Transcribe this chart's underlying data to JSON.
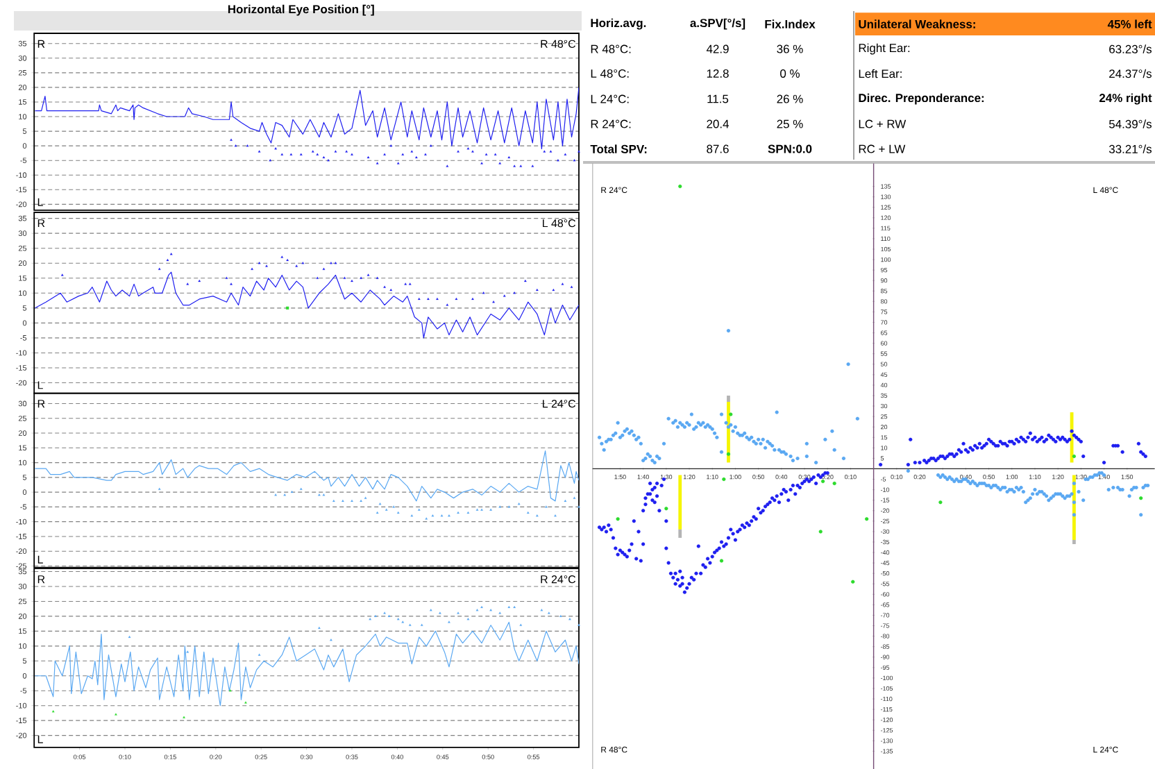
{
  "chart_data": [
    {
      "type": "line",
      "title": "Horizontal Eye Position [°]",
      "annotations": [
        "R",
        "L",
        "R 48°C"
      ],
      "xlim": [
        0,
        60
      ],
      "ylim": [
        -22,
        38.5
      ],
      "yticks": [
        -20,
        -15,
        -10,
        -5,
        0,
        5,
        10,
        15,
        20,
        25,
        30,
        35
      ],
      "grid": "y",
      "tick_labels": "y",
      "series": [
        {
          "color": "#1f1ff0",
          "x": [
            0.1,
            0.8,
            1.2,
            1.4,
            3.4,
            5.4,
            7.1,
            7.2,
            7.4,
            8.5,
            9.0,
            9.2,
            9.5,
            10.5,
            10.9,
            11.0,
            11.1,
            11.5,
            12.0,
            13.6,
            14.6,
            15.6,
            16.6,
            17.0,
            17.4,
            18.7,
            19.7,
            20.7,
            21.5,
            21.7,
            21.9,
            22.8,
            23.8,
            24.8,
            25.1,
            25.6,
            26.1,
            26.6,
            27.3,
            28.1,
            28.5,
            29.6,
            30.4,
            31.4,
            31.9,
            32.7,
            33.5,
            34.2,
            35.0,
            35.9,
            36.5,
            37.3,
            37.8,
            38.6,
            39.3,
            40.4,
            41.1,
            41.6,
            42.4,
            42.9,
            43.7,
            44.4,
            44.9,
            45.5,
            46.0,
            46.7,
            47.2,
            48.0,
            48.8,
            49.5,
            50.3,
            51.1,
            51.8,
            52.6,
            53.4,
            54.1,
            54.9,
            55.4,
            55.9,
            56.4,
            57.2,
            57.7,
            58.2,
            58.7,
            59.2,
            59.7,
            60.0
          ],
          "values": [
            12,
            12,
            17,
            12,
            12,
            12,
            12,
            14,
            12,
            11,
            14,
            12,
            13,
            12,
            14,
            9,
            13,
            14,
            13,
            11,
            10,
            10,
            10,
            13,
            11,
            10,
            9,
            9,
            9,
            15,
            10,
            8,
            6,
            5,
            8,
            4,
            1,
            8,
            7,
            3,
            9,
            4,
            9,
            3,
            8,
            3,
            11,
            4,
            6,
            19,
            7,
            12,
            3,
            13,
            2,
            15,
            3,
            12,
            2,
            13,
            3,
            12,
            2,
            15,
            0,
            13,
            3,
            12,
            1,
            13,
            2,
            12,
            1,
            13,
            0,
            12,
            1,
            15,
            -1,
            16,
            2,
            15,
            0,
            16,
            3,
            11,
            20
          ]
        },
        {
          "type": "scatter",
          "marker": "triangle",
          "color": "#1f1ff0",
          "x": [
            21.7,
            22.2,
            23.5,
            24.8,
            26.0,
            26.6,
            27.3,
            28.3,
            29.4,
            30.7,
            31.2,
            31.9,
            32.4,
            33.2,
            34.4,
            35.0,
            36.8,
            37.8,
            38.6,
            39.3,
            40.1,
            40.6,
            41.6,
            42.1,
            43.1,
            43.7,
            45.5,
            46.7,
            47.8,
            48.3,
            49.3,
            49.8,
            50.8,
            51.3,
            52.3,
            52.9,
            53.6,
            54.9,
            56.2,
            56.9,
            57.7,
            58.5,
            59.5,
            60.0
          ],
          "values": [
            2,
            0,
            0,
            -2,
            -5,
            -1,
            -3,
            -3,
            -3,
            -2,
            -3,
            -4,
            -5,
            -2,
            -2,
            -3,
            -4,
            -6,
            -3,
            0,
            -6,
            -3,
            -2,
            -4,
            -3,
            0,
            -7,
            -2,
            -1,
            -2,
            -6,
            -3,
            -3,
            -6,
            -4,
            -7,
            -7,
            -7,
            -2,
            -2,
            -5,
            -3,
            -5,
            -2
          ]
        }
      ]
    },
    {
      "type": "line",
      "annotations": [
        "R",
        "L",
        "L 48°C"
      ],
      "xlim": [
        0,
        60
      ],
      "ylim": [
        -23.5,
        37
      ],
      "yticks": [
        -20,
        -15,
        -10,
        -5,
        0,
        5,
        10,
        15,
        20,
        25,
        30,
        35
      ],
      "grid": "y",
      "tick_labels": "y",
      "series": [
        {
          "color": "#1f1ff0",
          "x": [
            0.1,
            1.3,
            2.9,
            3.6,
            4.9,
            5.9,
            6.4,
            7.2,
            8.0,
            8.5,
            9.0,
            9.7,
            10.5,
            11.0,
            11.5,
            12.0,
            13.1,
            13.3,
            14.1,
            14.8,
            15.1,
            15.6,
            16.4,
            17.1,
            18.2,
            19.7,
            21.2,
            21.7,
            22.5,
            23.0,
            23.8,
            24.5,
            25.3,
            25.8,
            26.6,
            27.3,
            28.1,
            28.9,
            29.6,
            30.2,
            31.4,
            32.4,
            33.2,
            33.7,
            34.2,
            35.0,
            36.0,
            37.0,
            38.1,
            38.6,
            39.6,
            40.6,
            41.1,
            41.9,
            42.7,
            42.9,
            43.4,
            44.4,
            45.2,
            45.7,
            46.5,
            47.2,
            48.0,
            48.8,
            50.3,
            51.3,
            52.3,
            53.4,
            54.4,
            55.4,
            56.2,
            56.9,
            57.4,
            58.2,
            59.0,
            60.0
          ],
          "values": [
            5,
            7,
            10,
            7,
            9,
            10,
            12,
            7,
            14,
            11,
            9,
            11,
            9,
            13,
            9,
            10,
            12,
            10,
            10,
            16,
            17,
            10,
            6,
            6,
            8,
            9,
            7,
            10,
            6,
            12,
            9,
            14,
            11,
            15,
            12,
            16,
            11,
            14,
            12,
            5,
            10,
            13,
            16,
            12,
            8,
            10,
            7,
            11,
            8,
            6,
            9,
            7,
            9,
            2,
            0,
            -5,
            2,
            -2,
            0,
            -4,
            1,
            -3,
            2,
            -4,
            3,
            1,
            5,
            1,
            7,
            3,
            -4,
            5,
            0,
            6,
            1,
            6
          ]
        },
        {
          "type": "scatter",
          "marker": "triangle",
          "color": "#1f1ff0",
          "x": [
            3.1,
            13.8,
            14.7,
            15.1,
            16.9,
            18.2,
            21.2,
            21.7,
            24.0,
            24.8,
            25.6,
            27.3,
            27.9,
            28.9,
            29.6,
            31.2,
            31.9,
            32.7,
            33.2,
            34.2,
            35.0,
            36.0,
            36.8,
            37.8,
            38.6,
            39.3,
            40.9,
            41.4,
            42.4,
            43.4,
            44.4,
            45.5,
            46.5,
            48.3,
            49.5,
            50.6,
            51.8,
            52.9,
            54.1,
            55.4,
            57.2,
            58.2,
            59.2
          ],
          "values": [
            16,
            18,
            21,
            23,
            13,
            14,
            15,
            13,
            18,
            20,
            19,
            22,
            21,
            19,
            20,
            15,
            18,
            20,
            20,
            15,
            14,
            15,
            16,
            15,
            12,
            11,
            13,
            13,
            8,
            8,
            8,
            6,
            8,
            8,
            10,
            7,
            9,
            10,
            14,
            11,
            11,
            13,
            12
          ]
        },
        {
          "type": "scatter",
          "marker": "square",
          "color": "#2edb2e",
          "x": [
            27.9
          ],
          "values": [
            5
          ]
        }
      ]
    },
    {
      "type": "line",
      "annotations": [
        "R",
        "L",
        "L 24°C"
      ],
      "xlim": [
        0,
        60
      ],
      "ylim": [
        -25.5,
        33.5
      ],
      "yticks": [
        -25,
        -20,
        -15,
        -10,
        -5,
        0,
        5,
        10,
        15,
        20,
        25,
        30
      ],
      "grid": "y",
      "tick_labels": "y",
      "series": [
        {
          "color": "#5aa8f2",
          "x": [
            0.1,
            1.3,
            1.8,
            2.9,
            3.9,
            4.4,
            6.4,
            8.0,
            8.5,
            9.0,
            10.0,
            11.5,
            12.0,
            13.1,
            13.8,
            14.1,
            15.1,
            15.6,
            16.4,
            16.9,
            17.7,
            18.2,
            19.2,
            20.2,
            21.2,
            22.0,
            22.8,
            23.8,
            24.8,
            25.8,
            26.8,
            27.9,
            28.9,
            29.9,
            30.9,
            31.9,
            32.4,
            32.7,
            33.5,
            34.2,
            35.0,
            35.8,
            36.5,
            37.3,
            37.8,
            38.6,
            39.3,
            40.1,
            41.1,
            42.1,
            42.7,
            43.7,
            44.4,
            45.2,
            46.2,
            47.2,
            48.3,
            49.3,
            50.3,
            51.3,
            52.3,
            53.4,
            54.4,
            55.4,
            56.3,
            56.9,
            57.4,
            58.0,
            58.5,
            58.9,
            59.5,
            59.7,
            60.0
          ],
          "values": [
            8,
            8,
            6,
            6,
            7,
            5,
            5,
            4,
            4,
            6,
            7,
            7,
            6,
            7,
            10,
            6,
            11,
            6,
            8,
            5,
            8,
            9,
            8,
            8,
            6,
            9,
            10,
            7,
            8,
            6,
            5,
            4,
            6,
            5,
            7,
            4,
            5,
            2,
            5,
            2,
            6,
            2,
            5,
            1,
            4,
            1,
            6,
            5,
            2,
            -3,
            2,
            -2,
            1,
            0,
            -2,
            0,
            1,
            -1,
            2,
            0,
            3,
            0,
            2,
            1,
            14,
            -2,
            -3,
            9,
            5,
            10,
            3,
            7,
            4
          ]
        },
        {
          "type": "scatter",
          "marker": "triangle",
          "color": "#5aa8f2",
          "x": [
            13.8,
            26.6,
            27.6,
            28.4,
            29.4,
            31.4,
            31.9,
            33.0,
            34.0,
            35.0,
            36.0,
            36.5,
            37.8,
            38.1,
            38.8,
            39.6,
            40.1,
            41.6,
            42.4,
            43.2,
            43.9,
            44.9,
            45.7,
            46.7,
            47.8,
            48.8,
            49.3,
            50.3,
            51.3,
            52.3,
            53.4,
            54.4,
            55.4,
            56.4,
            57.4,
            58.5,
            59.5,
            60.0
          ],
          "values": [
            1,
            -1,
            -1,
            0,
            1,
            -1,
            -1,
            -3,
            -3,
            -3,
            -3,
            -2,
            -7,
            -4,
            -6,
            -5,
            -7,
            -8,
            -6,
            -9,
            -8,
            -8,
            -8,
            -7,
            -7,
            -6,
            -6,
            -6,
            -5,
            -5,
            -4,
            -7,
            -8,
            -5,
            -8,
            -3,
            -2,
            -5
          ]
        }
      ]
    },
    {
      "type": "line",
      "annotations": [
        "R",
        "L",
        "R 24°C"
      ],
      "xlim": [
        0,
        60
      ],
      "ylim": [
        -24,
        36
      ],
      "yticks": [
        -20,
        -15,
        -10,
        -5,
        0,
        5,
        10,
        15,
        20,
        25,
        30,
        35
      ],
      "grid": "y",
      "xticks": [
        {
          "value": 5,
          "label": "0:05"
        },
        {
          "value": 10,
          "label": "0:10"
        },
        {
          "value": 15,
          "label": "0:15"
        },
        {
          "value": 20,
          "label": "0:20"
        },
        {
          "value": 25,
          "label": "0:25"
        },
        {
          "value": 30,
          "label": "0:30"
        },
        {
          "value": 35,
          "label": "0:35"
        },
        {
          "value": 40,
          "label": "0:40"
        },
        {
          "value": 45,
          "label": "0:45"
        },
        {
          "value": 50,
          "label": "0:50"
        },
        {
          "value": 55,
          "label": "0:55"
        }
      ],
      "series": [
        {
          "color": "#5aa8f2",
          "x": [
            0.1,
            1.3,
            2.1,
            2.3,
            3.1,
            3.9,
            4.1,
            4.6,
            5.2,
            5.9,
            6.4,
            6.7,
            7.0,
            7.4,
            7.7,
            8.2,
            9.0,
            9.6,
            10.0,
            10.6,
            11.0,
            11.5,
            12.3,
            12.8,
            13.6,
            13.8,
            14.6,
            15.4,
            15.9,
            16.4,
            16.6,
            17.1,
            17.7,
            18.2,
            18.7,
            19.2,
            19.7,
            20.5,
            21.0,
            21.5,
            22.0,
            22.5,
            22.8,
            23.3,
            23.8,
            24.5,
            25.3,
            26.3,
            27.3,
            28.1,
            28.9,
            29.9,
            30.9,
            31.9,
            32.4,
            33.0,
            34.0,
            34.7,
            35.5,
            36.5,
            37.6,
            38.1,
            38.8,
            40.1,
            41.1,
            41.6,
            42.4,
            43.2,
            44.2,
            45.2,
            45.7,
            46.5,
            47.2,
            48.3,
            49.3,
            50.3,
            51.3,
            52.3,
            52.9,
            53.4,
            54.4,
            55.4,
            56.4,
            57.4,
            58.5,
            59.2,
            59.7,
            60.0
          ],
          "values": [
            0,
            0,
            -7,
            5,
            0,
            10,
            -6,
            8,
            -6,
            0,
            -1,
            5,
            -3,
            14,
            -8,
            7,
            -7,
            4,
            -2,
            8,
            -5,
            3,
            -4,
            2,
            6,
            -8,
            3,
            -7,
            7,
            -5,
            10,
            -8,
            10,
            -7,
            8,
            -6,
            6,
            -10,
            3,
            -5,
            2,
            11,
            -8,
            3,
            -4,
            2,
            5,
            3,
            7,
            13,
            5,
            7,
            9,
            2,
            7,
            3,
            9,
            -2,
            7,
            10,
            14,
            10,
            13,
            11,
            11,
            4,
            13,
            10,
            15,
            8,
            3,
            14,
            11,
            15,
            11,
            17,
            12,
            18,
            9,
            5,
            12,
            5,
            15,
            8,
            12,
            5,
            10,
            4
          ]
        },
        {
          "type": "scatter",
          "marker": "triangle",
          "color": "#5aa8f2",
          "x": [
            10.5,
            16.9,
            24.8,
            31.4,
            32.7,
            37.0,
            37.6,
            38.6,
            39.1,
            40.1,
            40.6,
            41.4,
            42.7,
            43.7,
            44.7,
            45.7,
            46.7,
            47.8,
            48.8,
            49.3,
            50.3,
            51.3,
            52.3,
            52.9,
            53.6,
            55.9,
            56.7,
            58.0,
            59.0,
            60.0
          ],
          "values": [
            13,
            8,
            7,
            16,
            12,
            19,
            20,
            21,
            20,
            19,
            18,
            17,
            17,
            22,
            21,
            18,
            21,
            19,
            22,
            23,
            22,
            21,
            23,
            23,
            17,
            22,
            21,
            20,
            19,
            17
          ]
        },
        {
          "type": "scatter",
          "marker": "triangle",
          "color": "#2edb2e",
          "x": [
            2.1,
            9.0,
            16.5,
            21.6,
            23.3
          ],
          "values": [
            -12,
            -13,
            -14,
            -5,
            -9
          ]
        }
      ]
    },
    {
      "type": "other",
      "annotations": [
        "Horiz.avg.",
        "a.SPV[°/s]",
        "Fix.Index",
        "R 48°C:",
        "42.9",
        "36 %",
        "L 48°C:",
        "12.8",
        "0 %",
        "L 24°C:",
        "11.5",
        "26 %",
        "R 24°C:",
        "20.4",
        "25 %",
        "Total SPV:",
        "87.6",
        "SPN:0.0"
      ]
    },
    {
      "type": "other",
      "annotations": [
        "Unilateral Weakness:",
        "45% left",
        "Right Ear:",
        "63.23°/s",
        "Left Ear:",
        "24.37°/s",
        "Direc. Preponderance:",
        "24% right",
        "LC + RW",
        "54.39°/s",
        "RC + LW",
        "33.21°/s"
      ]
    },
    {
      "type": "scatter",
      "annotations": [
        "R 24°C",
        "R 48°C"
      ],
      "xlim": [
        122,
        0
      ],
      "ylim": [
        -143.5,
        146
      ],
      "tick_labels": "x",
      "xticks": [
        {
          "value": 110,
          "label": "1:50"
        },
        {
          "value": 100,
          "label": "1:40"
        },
        {
          "value": 90,
          "label": "1:30"
        },
        {
          "value": 80,
          "label": "1:20"
        },
        {
          "value": 70,
          "label": "1:10"
        },
        {
          "value": 60,
          "label": "1:00"
        },
        {
          "value": 50,
          "label": "0:50"
        },
        {
          "value": 40,
          "label": "0:40"
        },
        {
          "value": 30,
          "label": "0:30"
        },
        {
          "value": 20,
          "label": "0:20"
        },
        {
          "value": 10,
          "label": "0:10"
        }
      ],
      "series": [
        {
          "type": "line",
          "color": "#f5f500",
          "x": [
            63,
            63
          ],
          "values": [
            3,
            32
          ]
        },
        {
          "type": "line",
          "color": "#f5f500",
          "x": [
            84,
            84
          ],
          "values": [
            -29,
            -3
          ]
        },
        {
          "type": "line",
          "color": "#b4b4b4",
          "x": [
            63,
            63
          ],
          "values": [
            32,
            35
          ]
        },
        {
          "type": "line",
          "color": "#b4b4b4",
          "x": [
            84,
            84
          ],
          "values": [
            -33,
            -29
          ]
        },
        {
          "marker": "circle",
          "color": "#5aa8f2",
          "x": [
            119,
            118,
            117,
            116,
            115,
            114,
            113,
            112,
            111,
            110,
            109,
            108,
            107,
            106,
            105,
            104,
            103,
            102,
            101,
            100,
            99,
            98,
            97,
            96,
            95,
            94,
            93,
            91,
            89,
            87,
            86,
            85,
            84,
            83,
            82,
            81,
            80,
            79,
            78,
            77,
            76,
            75,
            74,
            73,
            72,
            71,
            70,
            69,
            68,
            66,
            66,
            64,
            63,
            63,
            62,
            61,
            60,
            59,
            58,
            57,
            56,
            55,
            54,
            53,
            52,
            51,
            50,
            49,
            48,
            47,
            46,
            45,
            44,
            43,
            42,
            41,
            40,
            39,
            38,
            36,
            35,
            33,
            29,
            29,
            25,
            21,
            18,
            17,
            13,
            11,
            7
          ],
          "values": [
            15,
            12,
            9,
            13,
            14,
            14,
            16,
            17,
            22,
            15,
            16,
            18,
            19,
            17,
            18,
            16,
            14,
            15,
            12,
            4,
            5,
            7,
            6,
            4,
            3,
            6,
            5,
            12,
            24,
            22,
            23,
            20,
            22,
            21,
            20,
            22,
            21,
            26,
            19,
            20,
            22,
            21,
            22,
            20,
            21,
            20,
            19,
            17,
            15,
            8,
            26,
            22,
            66,
            20,
            21,
            18,
            20,
            17,
            16,
            16,
            17,
            15,
            14,
            15,
            13,
            12,
            14,
            12,
            14,
            10,
            13,
            12,
            11,
            9,
            27,
            9,
            8,
            8,
            7,
            6,
            4,
            5,
            12,
            6,
            3,
            14,
            18,
            9,
            5,
            50,
            24
          ]
        },
        {
          "marker": "circle",
          "color": "#1f1ff0",
          "x": [
            119,
            118,
            117,
            116,
            115,
            114,
            113,
            112,
            111,
            110,
            109,
            108,
            107,
            106,
            105,
            104,
            103,
            102,
            101,
            100,
            100,
            99,
            99,
            98,
            97,
            97,
            96,
            96,
            95,
            95,
            94,
            94,
            93,
            92,
            91,
            90,
            90,
            89,
            88,
            87,
            86,
            86,
            85,
            84,
            84,
            83,
            83,
            82,
            81,
            80,
            79,
            78,
            77,
            76,
            75,
            74,
            73,
            72,
            71,
            70,
            69,
            68,
            67,
            66,
            65,
            64,
            63,
            62,
            61,
            60,
            59,
            58,
            57,
            56,
            55,
            54,
            53,
            52,
            51,
            50,
            49,
            48,
            47,
            46,
            45,
            44,
            43,
            42,
            41,
            40,
            39,
            38,
            37,
            36,
            35,
            34,
            33,
            32,
            31,
            30,
            29,
            28,
            27,
            26,
            25,
            24,
            23,
            22,
            21,
            20
          ],
          "values": [
            -28,
            -29,
            -28,
            -30,
            -27,
            -29,
            -33,
            -38,
            -41,
            -39,
            -40,
            -41,
            -42,
            -39,
            -36,
            -25,
            -43,
            -30,
            -44,
            -36,
            -20,
            -17,
            -14,
            -12,
            -7,
            -12,
            -10,
            -15,
            -16,
            -9,
            -7,
            -13,
            -20,
            -8,
            -5,
            -25,
            -38,
            -45,
            -50,
            -52,
            -50,
            -55,
            -53,
            -49,
            -56,
            -55,
            -52,
            -59,
            -57,
            -55,
            -52,
            -53,
            -50,
            -37,
            -50,
            -46,
            -47,
            -43,
            -45,
            -42,
            -40,
            -39,
            -38,
            -35,
            -37,
            -36,
            -33,
            -29,
            -31,
            -34,
            -30,
            -29,
            -27,
            -28,
            -26,
            -27,
            -25,
            -23,
            -24,
            -19,
            -21,
            -20,
            -18,
            -17,
            -16,
            -14,
            -15,
            -13,
            -16,
            -12,
            -10,
            -11,
            -15,
            -10,
            -8,
            -12,
            -8,
            -9,
            -7,
            -6,
            -5,
            -6,
            -5,
            -4,
            -7,
            -3,
            -4,
            -3,
            -2,
            -2
          ]
        },
        {
          "marker": "circle",
          "color": "#2edb2e",
          "x": [
            84,
            62,
            63,
            65,
            111,
            90,
            66,
            23,
            22,
            17,
            9,
            3
          ],
          "values": [
            135,
            26,
            7,
            -5,
            -24,
            -19,
            -44,
            -30,
            -6,
            -7,
            -54,
            -24
          ]
        }
      ]
    },
    {
      "type": "scatter",
      "annotations": [
        "L 48°C",
        "L 24°C"
      ],
      "xlim": [
        0,
        122
      ],
      "ylim": [
        -143.5,
        146
      ],
      "xticks": [
        {
          "value": 10,
          "label": "0:10"
        },
        {
          "value": 20,
          "label": "0:20"
        },
        {
          "value": 30,
          "label": null
        },
        {
          "value": 40,
          "label": "0:40"
        },
        {
          "value": 50,
          "label": "0:50"
        },
        {
          "value": 60,
          "label": "1:00"
        },
        {
          "value": 70,
          "label": "1:10"
        },
        {
          "value": 80,
          "label": "1:20"
        },
        {
          "value": 90,
          "label": "1:30"
        },
        {
          "value": 100,
          "label": "1:40"
        },
        {
          "value": 110,
          "label": "1:50"
        }
      ],
      "yticks": [
        135,
        130,
        125,
        120,
        115,
        110,
        105,
        100,
        95,
        90,
        85,
        80,
        75,
        70,
        65,
        60,
        55,
        50,
        45,
        40,
        35,
        30,
        25,
        20,
        15,
        10,
        5,
        -5,
        -10,
        -15,
        -20,
        -25,
        -30,
        -35,
        -40,
        -45,
        -50,
        -55,
        -60,
        -65,
        -70,
        -75,
        -80,
        -85,
        -90,
        -95,
        -100,
        -105,
        -110,
        -115,
        -120,
        -125,
        -130,
        -135
      ],
      "series": [
        {
          "type": "line",
          "color": "#f5f500",
          "x": [
            86,
            86
          ],
          "values": [
            3,
            27
          ]
        },
        {
          "type": "line",
          "color": "#f5f500",
          "x": [
            87,
            87
          ],
          "values": [
            -34,
            -3
          ]
        },
        {
          "type": "line",
          "color": "#b4b4b4",
          "x": [
            87,
            87
          ],
          "values": [
            -36,
            -34
          ]
        },
        {
          "marker": "circle",
          "color": "#1f1ff0",
          "x": [
            3,
            15,
            16,
            18,
            20,
            22,
            23,
            24,
            25,
            26,
            27,
            28,
            29,
            30,
            31,
            32,
            33,
            34,
            35,
            36,
            37,
            38,
            39,
            40,
            41,
            42,
            43,
            44,
            45,
            46,
            47,
            48,
            49,
            50,
            51,
            52,
            53,
            54,
            55,
            56,
            57,
            58,
            59,
            60,
            61,
            62,
            63,
            64,
            65,
            66,
            67,
            68,
            69,
            70,
            71,
            72,
            73,
            74,
            75,
            76,
            77,
            78,
            79,
            80,
            81,
            82,
            83,
            84,
            85,
            86,
            87,
            88,
            89,
            90,
            91,
            100,
            104,
            105,
            106,
            108,
            115,
            116,
            117,
            118
          ],
          "values": [
            2,
            2,
            14,
            3,
            3,
            4,
            3,
            4,
            5,
            5,
            4,
            5,
            6,
            6,
            5,
            6,
            7,
            7,
            6,
            7,
            9,
            8,
            12,
            9,
            8,
            10,
            9,
            11,
            10,
            12,
            10,
            11,
            12,
            14,
            13,
            12,
            11,
            11,
            13,
            12,
            12,
            11,
            13,
            13,
            12,
            14,
            13,
            15,
            14,
            13,
            15,
            17,
            14,
            15,
            13,
            14,
            15,
            13,
            14,
            16,
            15,
            14,
            13,
            15,
            14,
            15,
            14,
            13,
            14,
            18,
            16,
            15,
            14,
            13,
            6,
            3,
            11,
            11,
            11,
            8,
            12,
            8,
            7,
            6
          ]
        },
        {
          "marker": "circle",
          "color": "#5aa8f2",
          "x": [
            15,
            28,
            29,
            30,
            31,
            32,
            33,
            34,
            35,
            36,
            37,
            38,
            39,
            40,
            41,
            42,
            43,
            44,
            45,
            46,
            47,
            48,
            49,
            50,
            51,
            52,
            53,
            54,
            55,
            56,
            57,
            58,
            59,
            60,
            61,
            62,
            63,
            64,
            65,
            66,
            67,
            68,
            69,
            70,
            71,
            72,
            73,
            74,
            75,
            76,
            77,
            78,
            79,
            80,
            81,
            82,
            83,
            84,
            85,
            86,
            87,
            87,
            87,
            89,
            91,
            92,
            93,
            94,
            95,
            96,
            97,
            98,
            99,
            100,
            102,
            104,
            106,
            107,
            108,
            111,
            112,
            113,
            114,
            116,
            117,
            118,
            119
          ],
          "values": [
            -1,
            -3,
            -4,
            -3,
            -4,
            -5,
            -4,
            -5,
            -6,
            -5,
            -6,
            -6,
            -5,
            -5,
            -6,
            -7,
            -6,
            -7,
            -8,
            -7,
            -7,
            -7,
            -8,
            -8,
            -9,
            -8,
            -8,
            -9,
            -10,
            -9,
            -9,
            -11,
            -10,
            -10,
            -11,
            -9,
            -10,
            -9,
            -11,
            -16,
            -15,
            -14,
            -12,
            -10,
            -12,
            -11,
            -11,
            -12,
            -13,
            -15,
            -14,
            -13,
            -12,
            -12,
            -12,
            -13,
            -14,
            -13,
            -13,
            -12,
            -22,
            -16,
            -7,
            -11,
            -15,
            -5,
            -5,
            -4,
            -4,
            -3,
            -3,
            -2,
            -2,
            -3,
            -10,
            -9,
            -9,
            -10,
            -10,
            -13,
            -10,
            -9,
            -9,
            -22,
            -9,
            -8,
            -8
          ]
        },
        {
          "marker": "circle",
          "color": "#2edb2e",
          "x": [
            87,
            29,
            116
          ],
          "values": [
            6,
            -16,
            -14
          ]
        }
      ]
    }
  ]
}
